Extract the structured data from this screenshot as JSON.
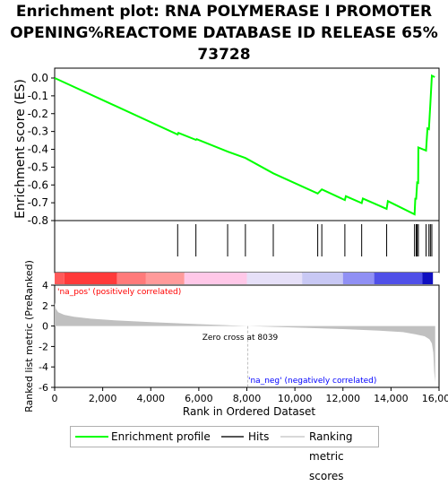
{
  "title_lines": [
    "Enrichment plot: RNA POLYMERASE I PROMOTER",
    "OPENING%REACTOME DATABASE ID RELEASE 65%",
    "73728"
  ],
  "legend": {
    "enrichment_profile": "Enrichment profile",
    "hits": "Hits",
    "ranking_metric": "Ranking metric scores"
  },
  "colors": {
    "profile": "#00ff00",
    "ranking_fill": "#c0c0c0",
    "zero_cross_line": "#c0c0c0",
    "pos_label": "#ff0000",
    "neg_label": "#0000ff"
  },
  "chart_data": [
    {
      "type": "line",
      "ylabel": "Enrichment score (ES)",
      "ylim": [
        -0.8,
        0.0
      ],
      "xlim": [
        0,
        16000
      ],
      "y_ticks": [
        "0.0",
        "-0.1",
        "-0.2",
        "-0.3",
        "-0.4",
        "-0.5",
        "-0.6",
        "-0.7",
        "-0.8"
      ],
      "series": [
        {
          "name": "Enrichment profile",
          "x": [
            0,
            5120,
            5150,
            5880,
            5910,
            7200,
            7940,
            9100,
            10950,
            11120,
            12080,
            12120,
            12780,
            12830,
            13820,
            13870,
            14980,
            15010,
            15050,
            15090,
            15130,
            15140,
            15460,
            15520,
            15580,
            15640,
            15700,
            15820
          ],
          "y": [
            0.0,
            -0.317,
            -0.308,
            -0.347,
            -0.343,
            -0.413,
            -0.449,
            -0.535,
            -0.648,
            -0.625,
            -0.685,
            -0.663,
            -0.702,
            -0.676,
            -0.734,
            -0.691,
            -0.765,
            -0.677,
            -0.677,
            -0.586,
            -0.588,
            -0.39,
            -0.407,
            -0.283,
            -0.287,
            -0.146,
            0.013,
            0.005
          ]
        }
      ]
    },
    {
      "type": "scatter",
      "name": "Hits",
      "x": [
        5120,
        5880,
        7200,
        7940,
        9100,
        10950,
        11120,
        12080,
        12780,
        13820,
        14980,
        15050,
        15090,
        15140,
        15460,
        15580,
        15640,
        15700
      ]
    },
    {
      "type": "area",
      "ylabel": "Ranked list metric (PreRanked)",
      "xlabel": "Rank in Ordered Dataset",
      "xlim": [
        0,
        16000
      ],
      "ylim": [
        -6,
        4
      ],
      "x_ticks": [
        "0",
        "2,000",
        "4,000",
        "6,000",
        "8,000",
        "10,000",
        "12,000",
        "14,000",
        "16,000"
      ],
      "y_ticks": [
        "4",
        "2",
        "0",
        "-2",
        "-4",
        "-6"
      ],
      "x": [
        0,
        50,
        150,
        400,
        800,
        1500,
        2500,
        4000,
        6000,
        8039,
        10000,
        12000,
        13500,
        14500,
        15000,
        15400,
        15600,
        15700,
        15760,
        15800,
        15840
      ],
      "values": [
        2.3,
        1.7,
        1.35,
        1.1,
        0.9,
        0.72,
        0.55,
        0.38,
        0.18,
        0.0,
        -0.15,
        -0.3,
        -0.45,
        -0.6,
        -0.8,
        -1.0,
        -1.3,
        -1.7,
        -2.6,
        -4.5,
        -5.5
      ],
      "annotations": {
        "zero_cross": "Zero cross at 8039",
        "positive": "'na_pos' (positively correlated)",
        "negative": "'na_neg' (negatively correlated)"
      }
    }
  ]
}
